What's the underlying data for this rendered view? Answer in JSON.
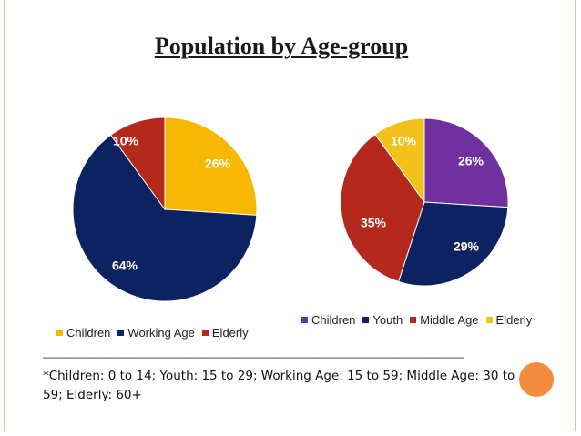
{
  "slide": {
    "title": "Population by Age-group",
    "rule_text": "________________________________________________________________",
    "note": "*Children: 0 to 14; Youth: 15 to 29; Working Age: 15 to 59; Middle Age: 30 to 59; Elderly: 60+",
    "accent_dot_color": "#f58b3f",
    "frame_color": "#f2b8a8"
  },
  "chart_data": [
    {
      "type": "pie",
      "title": "",
      "categories": [
        "Children",
        "Working Age",
        "Elderly"
      ],
      "values": [
        26,
        64,
        10
      ],
      "labels": [
        "26%",
        "64%",
        "10%"
      ],
      "colors": [
        "#f6b800",
        "#0d2260",
        "#b5281c"
      ],
      "label_colors": [
        "#ffffff",
        "#ffffff",
        "#ffffff"
      ],
      "legend_position": "bottom"
    },
    {
      "type": "pie",
      "title": "",
      "categories": [
        "Children",
        "Youth",
        "Middle Age",
        "Elderly"
      ],
      "values": [
        26,
        29,
        35,
        10
      ],
      "labels": [
        "26%",
        "29%",
        "35%",
        "10%"
      ],
      "colors": [
        "#7030a0",
        "#0d2260",
        "#b5281c",
        "#f2c21a"
      ],
      "label_colors": [
        "#ffffff",
        "#ffffff",
        "#ffffff",
        "#ffffff"
      ],
      "legend_position": "bottom"
    }
  ]
}
